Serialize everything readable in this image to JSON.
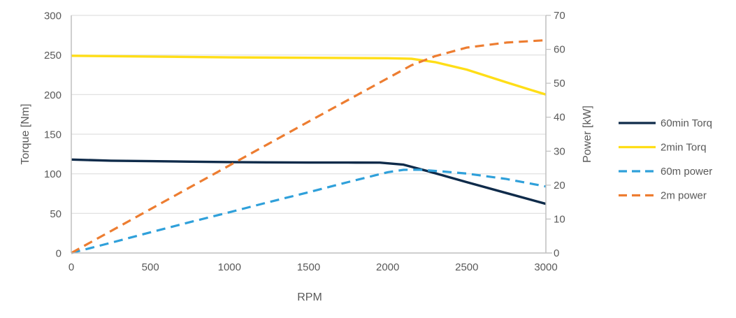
{
  "page": {
    "background": "#FFFFFF"
  },
  "style_colors": {
    "gridline": "#D9D9D9",
    "axis_line": "#BFBFBF",
    "text": "#595959"
  },
  "chart_data": {
    "type": "line",
    "title": "",
    "grid": "horizontal",
    "legend_position": "right",
    "x_axis": {
      "label": "RPM",
      "min": 0,
      "max": 3000,
      "ticks": [
        0,
        500,
        1000,
        1500,
        2000,
        2500,
        3000
      ]
    },
    "y_axis_left": {
      "label": "Torque [Nm]",
      "min": 0,
      "max": 300,
      "ticks": [
        0,
        50,
        100,
        150,
        200,
        250,
        300
      ]
    },
    "y_axis_right": {
      "label": "Power [kW]",
      "min": 0,
      "max": 70,
      "ticks": [
        0,
        10,
        20,
        30,
        40,
        50,
        60,
        70
      ]
    },
    "series": [
      {
        "name": "60min Torq",
        "axis": "left",
        "line_style": "solid",
        "color": "#0F2B4A",
        "points": [
          [
            0,
            118
          ],
          [
            250,
            116.6
          ],
          [
            500,
            115.9
          ],
          [
            750,
            115.3
          ],
          [
            1000,
            114.8
          ],
          [
            1250,
            114.4
          ],
          [
            1500,
            114.2
          ],
          [
            1750,
            114.2
          ],
          [
            1950,
            114.1
          ],
          [
            2100,
            111.5
          ],
          [
            2250,
            103.5
          ],
          [
            2500,
            89.5
          ],
          [
            2750,
            75.7
          ],
          [
            3000,
            62
          ]
        ]
      },
      {
        "name": "2min Torq",
        "axis": "left",
        "line_style": "solid",
        "color": "#FFDE17",
        "points": [
          [
            0,
            249
          ],
          [
            500,
            248
          ],
          [
            1000,
            247
          ],
          [
            1500,
            246.4
          ],
          [
            1800,
            246.1
          ],
          [
            2000,
            245.9
          ],
          [
            2150,
            245.2
          ],
          [
            2300,
            241
          ],
          [
            2500,
            231.5
          ],
          [
            2750,
            215.5
          ],
          [
            3000,
            200
          ]
        ]
      },
      {
        "name": "60m power",
        "axis": "right",
        "line_style": "dashed",
        "color": "#2FA0DA",
        "points": [
          [
            0,
            0
          ],
          [
            250,
            3.0
          ],
          [
            500,
            6.1
          ],
          [
            750,
            9.1
          ],
          [
            1000,
            12.0
          ],
          [
            1250,
            15.0
          ],
          [
            1500,
            17.9
          ],
          [
            1750,
            20.9
          ],
          [
            2000,
            23.8
          ],
          [
            2100,
            24.5
          ],
          [
            2200,
            24.55
          ],
          [
            2350,
            24.0
          ],
          [
            2500,
            23.4
          ],
          [
            2750,
            21.8
          ],
          [
            3000,
            19.6
          ]
        ]
      },
      {
        "name": "2m power",
        "axis": "right",
        "line_style": "dashed",
        "color": "#ED7D31",
        "points": [
          [
            0,
            0
          ],
          [
            500,
            12.9
          ],
          [
            1000,
            25.8
          ],
          [
            1500,
            38.7
          ],
          [
            2000,
            51.5
          ],
          [
            2150,
            55.3
          ],
          [
            2300,
            58.0
          ],
          [
            2500,
            60.5
          ],
          [
            2750,
            62.0
          ],
          [
            3000,
            62.7
          ]
        ]
      }
    ]
  }
}
